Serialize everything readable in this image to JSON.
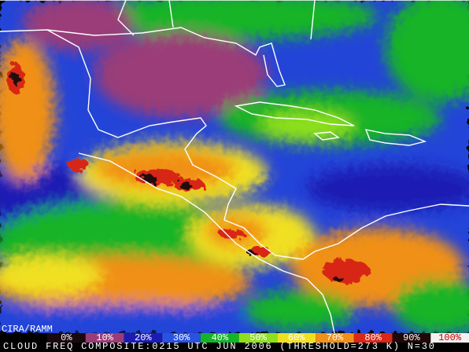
{
  "credit": "CIRA/RAMM",
  "legend": [
    {
      "label": "0%",
      "color": "#1a0a10"
    },
    {
      "label": "10%",
      "color": "#9a3c78"
    },
    {
      "label": "20%",
      "color": "#1c1cb4"
    },
    {
      "label": "30%",
      "color": "#2a52e0"
    },
    {
      "label": "40%",
      "color": "#14b428"
    },
    {
      "label": "50%",
      "color": "#8ee01c"
    },
    {
      "label": "60%",
      "color": "#f0e020"
    },
    {
      "label": "70%",
      "color": "#f09018"
    },
    {
      "label": "80%",
      "color": "#d82818"
    },
    {
      "label": "90%",
      "color": "#200808"
    },
    {
      "label": "100%",
      "color": "#f4f0f0"
    }
  ],
  "caption": "CLOUD FREQ COMPOSITE:0215 UTC JUN 2006 (THRESHOLD=273 K) N=30"
}
